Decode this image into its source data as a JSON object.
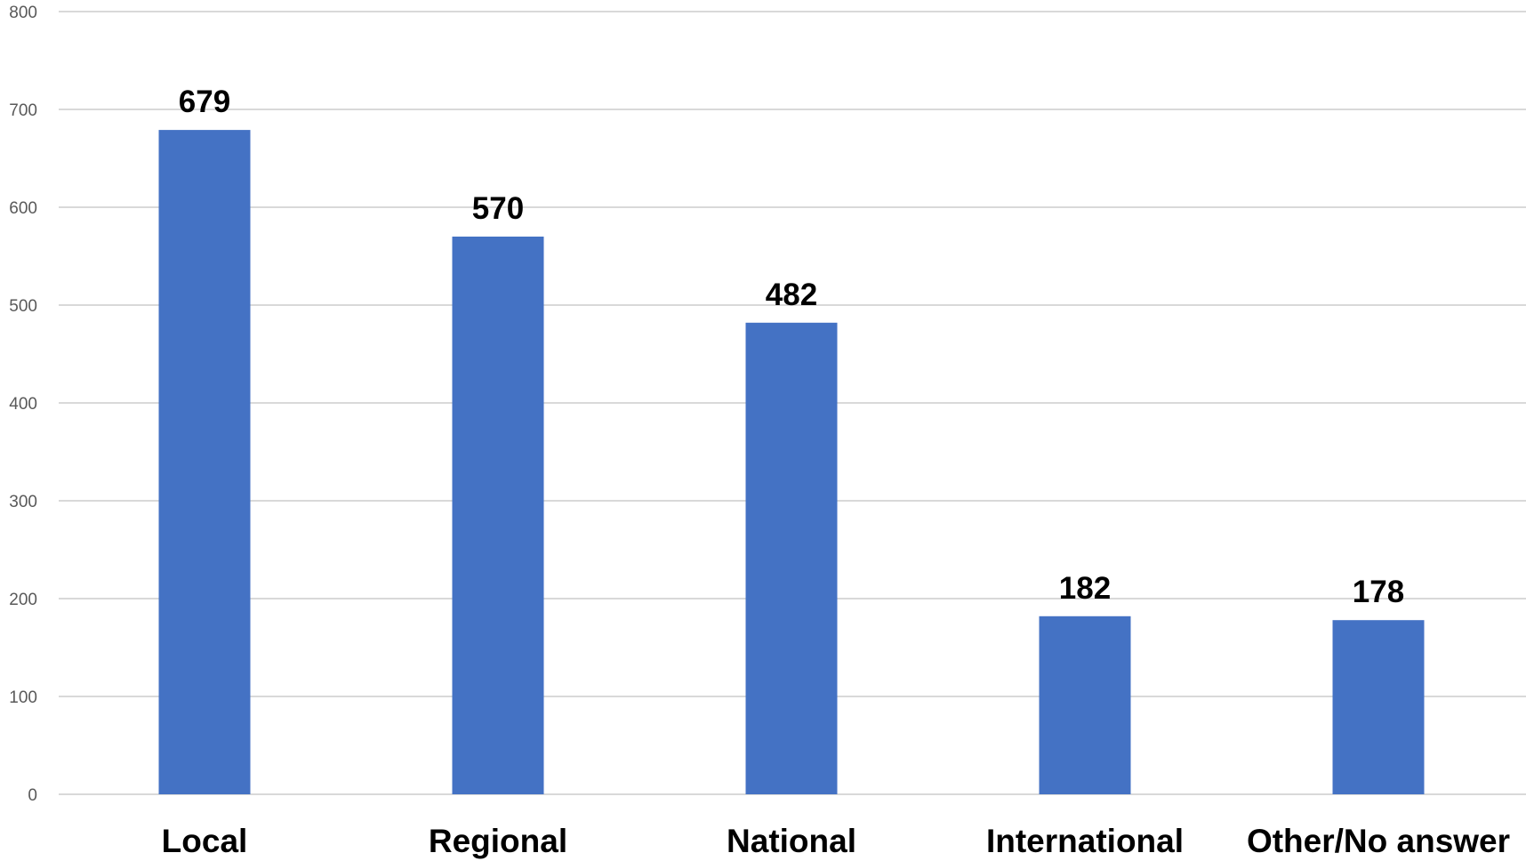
{
  "chart_data": {
    "type": "bar",
    "title": "",
    "xlabel": "",
    "ylabel": "",
    "categories": [
      "Local",
      "Regional",
      "National",
      "International",
      "Other/No answer"
    ],
    "values": [
      679,
      570,
      482,
      182,
      178
    ],
    "data_labels": [
      "679",
      "570",
      "482",
      "182",
      "178"
    ],
    "ylim": [
      0,
      800
    ],
    "yticks": [
      0,
      100,
      200,
      300,
      400,
      500,
      600,
      700,
      800
    ],
    "ytick_labels": [
      "0",
      "100",
      "200",
      "300",
      "400",
      "500",
      "600",
      "700",
      "800"
    ],
    "grid": true,
    "legend": "none",
    "bar_color": "#4472C4",
    "gridline_color": "#d9d9d9"
  }
}
